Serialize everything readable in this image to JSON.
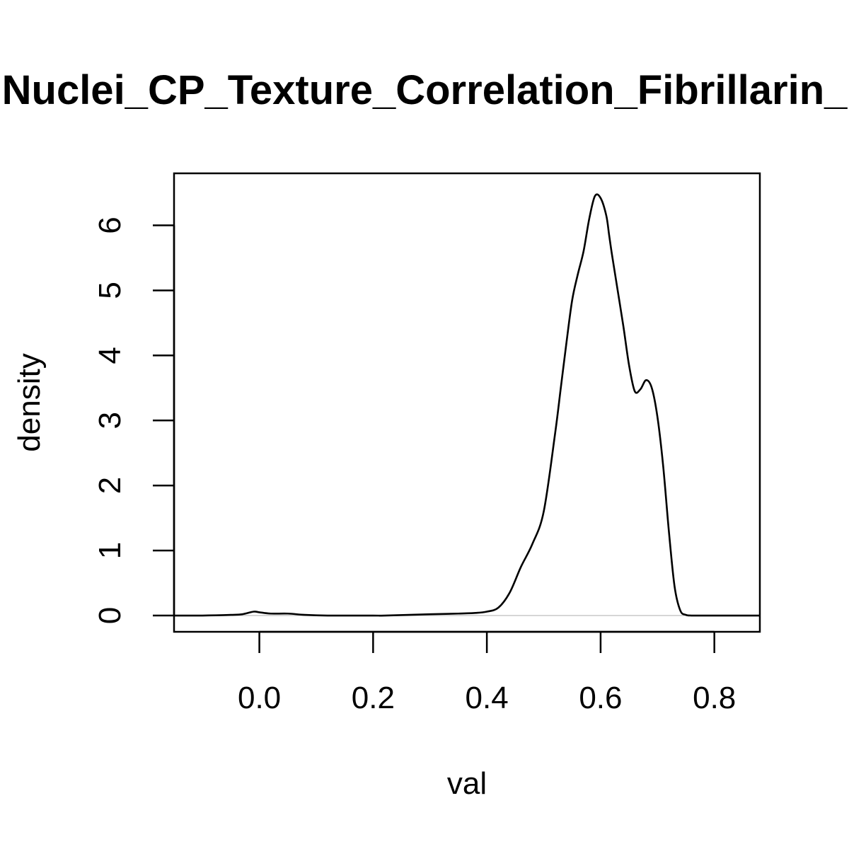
{
  "chart_data": {
    "type": "line",
    "title": "Nuclei_CP_Texture_Correlation_Fibrillarin_",
    "xlabel": "val",
    "ylabel": "density",
    "xlim": [
      -0.15,
      0.88
    ],
    "ylim": [
      -0.25,
      6.8
    ],
    "x_ticks": [
      0.0,
      0.2,
      0.4,
      0.6,
      0.8
    ],
    "x_tick_labels": [
      "0.0",
      "0.2",
      "0.4",
      "0.6",
      "0.8"
    ],
    "y_ticks": [
      0,
      1,
      2,
      3,
      4,
      5,
      6
    ],
    "y_tick_labels": [
      "0",
      "1",
      "2",
      "3",
      "4",
      "5",
      "6"
    ],
    "zero_reference_line": true,
    "grid": false,
    "series": [
      {
        "x": [
          -0.15,
          -0.1,
          -0.05,
          -0.03,
          -0.01,
          0.0,
          0.02,
          0.05,
          0.08,
          0.12,
          0.2,
          0.22,
          0.3,
          0.35,
          0.38,
          0.4,
          0.42,
          0.44,
          0.46,
          0.48,
          0.5,
          0.52,
          0.53,
          0.54,
          0.55,
          0.56,
          0.57,
          0.58,
          0.59,
          0.6,
          0.61,
          0.615,
          0.62,
          0.63,
          0.64,
          0.65,
          0.66,
          0.67,
          0.68,
          0.69,
          0.7,
          0.71,
          0.72,
          0.73,
          0.74,
          0.75,
          0.76,
          0.78,
          0.8,
          0.84,
          0.88
        ],
        "y": [
          0.0,
          0.0,
          0.01,
          0.02,
          0.06,
          0.05,
          0.03,
          0.03,
          0.01,
          0.0,
          0.0,
          0.0,
          0.02,
          0.03,
          0.04,
          0.06,
          0.12,
          0.35,
          0.75,
          1.1,
          1.6,
          2.8,
          3.5,
          4.2,
          4.85,
          5.25,
          5.6,
          6.1,
          6.45,
          6.42,
          6.15,
          5.85,
          5.55,
          5.0,
          4.45,
          3.85,
          3.45,
          3.48,
          3.62,
          3.5,
          3.05,
          2.3,
          1.3,
          0.45,
          0.08,
          0.01,
          0.0,
          0.0,
          0.0,
          0.0,
          0.0
        ]
      }
    ]
  }
}
